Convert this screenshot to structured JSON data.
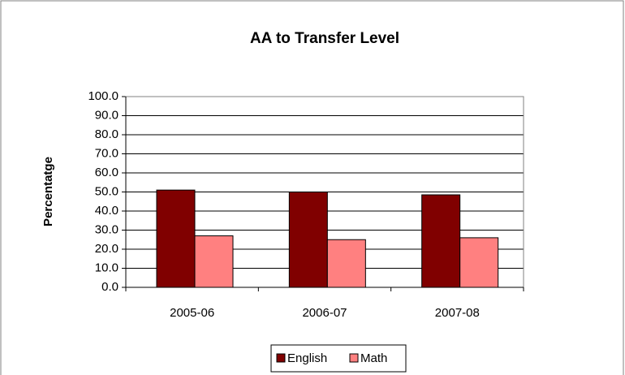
{
  "chart_data": {
    "type": "bar",
    "title": "AA to Transfer Level",
    "y_label": "Percentatge",
    "categories": [
      "2005-06",
      "2006-07",
      "2007-08"
    ],
    "series": [
      {
        "name": "English",
        "color": "#800000",
        "values": [
          51,
          50,
          48.5
        ]
      },
      {
        "name": "Math",
        "color": "#ff8080",
        "values": [
          27,
          25,
          26
        ]
      }
    ],
    "ylim": [
      0,
      100
    ],
    "yticks": [
      {
        "value": 0,
        "label": "0.0"
      },
      {
        "value": 10,
        "label": "10.0"
      },
      {
        "value": 20,
        "label": "20.0"
      },
      {
        "value": 30,
        "label": "30.0"
      },
      {
        "value": 40,
        "label": "40.0"
      },
      {
        "value": 50,
        "label": "50.0"
      },
      {
        "value": 60,
        "label": "60.0"
      },
      {
        "value": 70,
        "label": "70.0"
      },
      {
        "value": 80,
        "label": "80.0"
      },
      {
        "value": 90,
        "label": "90.0"
      },
      {
        "value": 100,
        "label": "100.0"
      }
    ],
    "grid": true,
    "legend": "bottom"
  }
}
